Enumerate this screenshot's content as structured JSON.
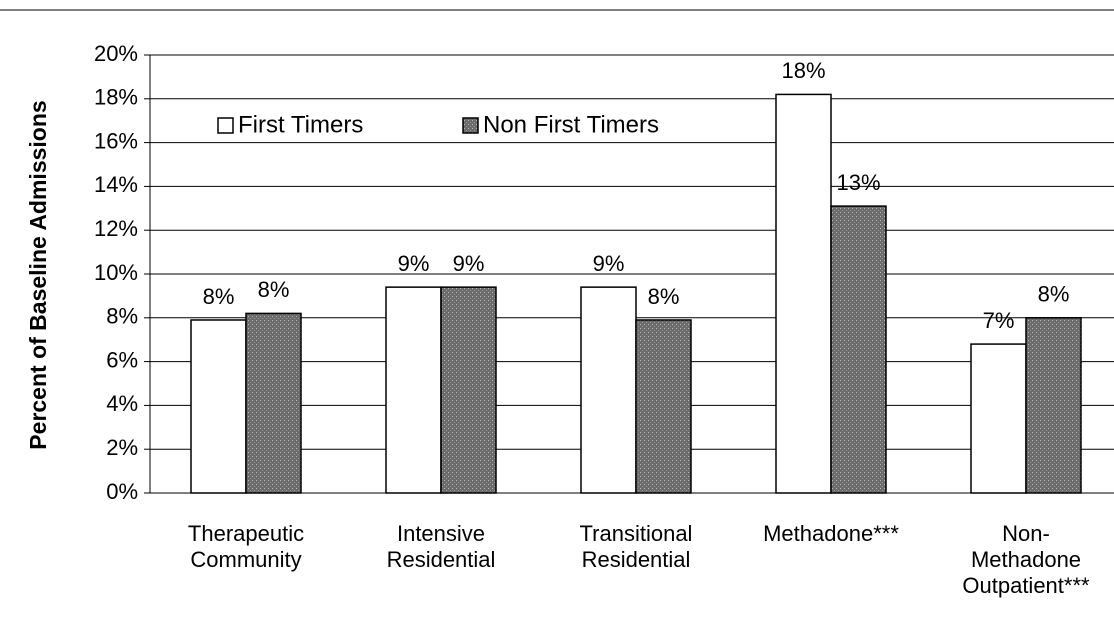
{
  "chart_data": {
    "type": "bar",
    "y_label": "Percent of Baseline Admissions",
    "categories": [
      [
        "Therapeutic",
        "Community"
      ],
      [
        "Intensive",
        "Residential"
      ],
      [
        "Transitional",
        "Residential"
      ],
      [
        "Methadone***"
      ],
      [
        "Non-",
        "Methadone",
        "Outpatient***"
      ]
    ],
    "series": [
      {
        "name": "First Timers",
        "color": "#ffffff",
        "values": [
          7.9,
          9.4,
          9.4,
          18.2,
          6.8
        ],
        "value_labels": [
          "8%",
          "9%",
          "9%",
          "18%",
          "7%"
        ]
      },
      {
        "name": "Non First Timers",
        "color": "#6b6b6b",
        "values": [
          8.2,
          9.4,
          7.9,
          13.1,
          8.0
        ],
        "value_labels": [
          "8%",
          "9%",
          "8%",
          "13%",
          "8%"
        ]
      }
    ],
    "ylim": [
      0,
      20
    ],
    "yticks": [
      {
        "value": 0,
        "label": "0%"
      },
      {
        "value": 2,
        "label": "2%"
      },
      {
        "value": 4,
        "label": "4%"
      },
      {
        "value": 6,
        "label": "6%"
      },
      {
        "value": 8,
        "label": "8%"
      },
      {
        "value": 10,
        "label": "10%"
      },
      {
        "value": 12,
        "label": "12%"
      },
      {
        "value": 14,
        "label": "14%"
      },
      {
        "value": 16,
        "label": "16%"
      },
      {
        "value": 18,
        "label": "18%"
      },
      {
        "value": 20,
        "label": "20%"
      }
    ],
    "grid": true,
    "legend": "upper left"
  }
}
